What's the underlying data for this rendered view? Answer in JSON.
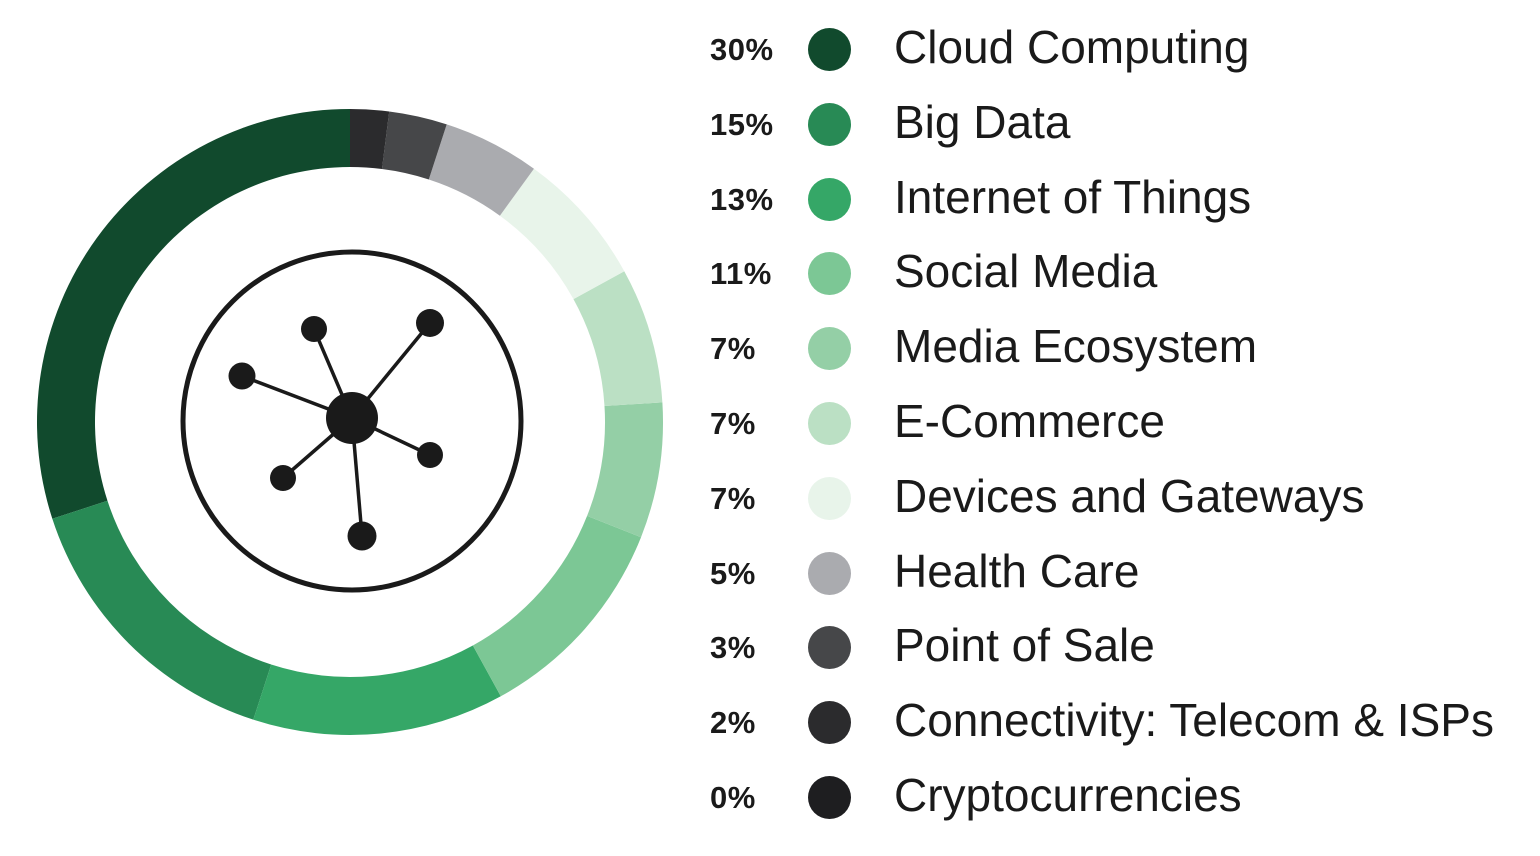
{
  "chart_data": {
    "type": "pie",
    "style": "donut",
    "title": "",
    "center_icon": "network-hub-icon",
    "categories": [
      "Cloud Computing",
      "Big Data",
      "Internet of Things",
      "Social Media",
      "Media Ecosystem",
      "E-Commerce",
      "Devices and Gateways",
      "Health Care",
      "Point of Sale",
      "Connectivity: Telecom & ISPs",
      "Cryptocurrencies"
    ],
    "values": [
      30,
      15,
      13,
      11,
      7,
      7,
      7,
      5,
      3,
      2,
      0
    ],
    "value_labels": [
      "30%",
      "15%",
      "13%",
      "11%",
      "7%",
      "7%",
      "7%",
      "5%",
      "3%",
      "2%",
      "0%"
    ],
    "colors": [
      "#114a2d",
      "#288a55",
      "#35a767",
      "#7cc795",
      "#94cfa6",
      "#bbe0c4",
      "#e8f4ea",
      "#aaabaf",
      "#464749",
      "#2b2b2d",
      "#1e1e20"
    ],
    "direction": "counterclockwise",
    "legend_position": "right"
  }
}
